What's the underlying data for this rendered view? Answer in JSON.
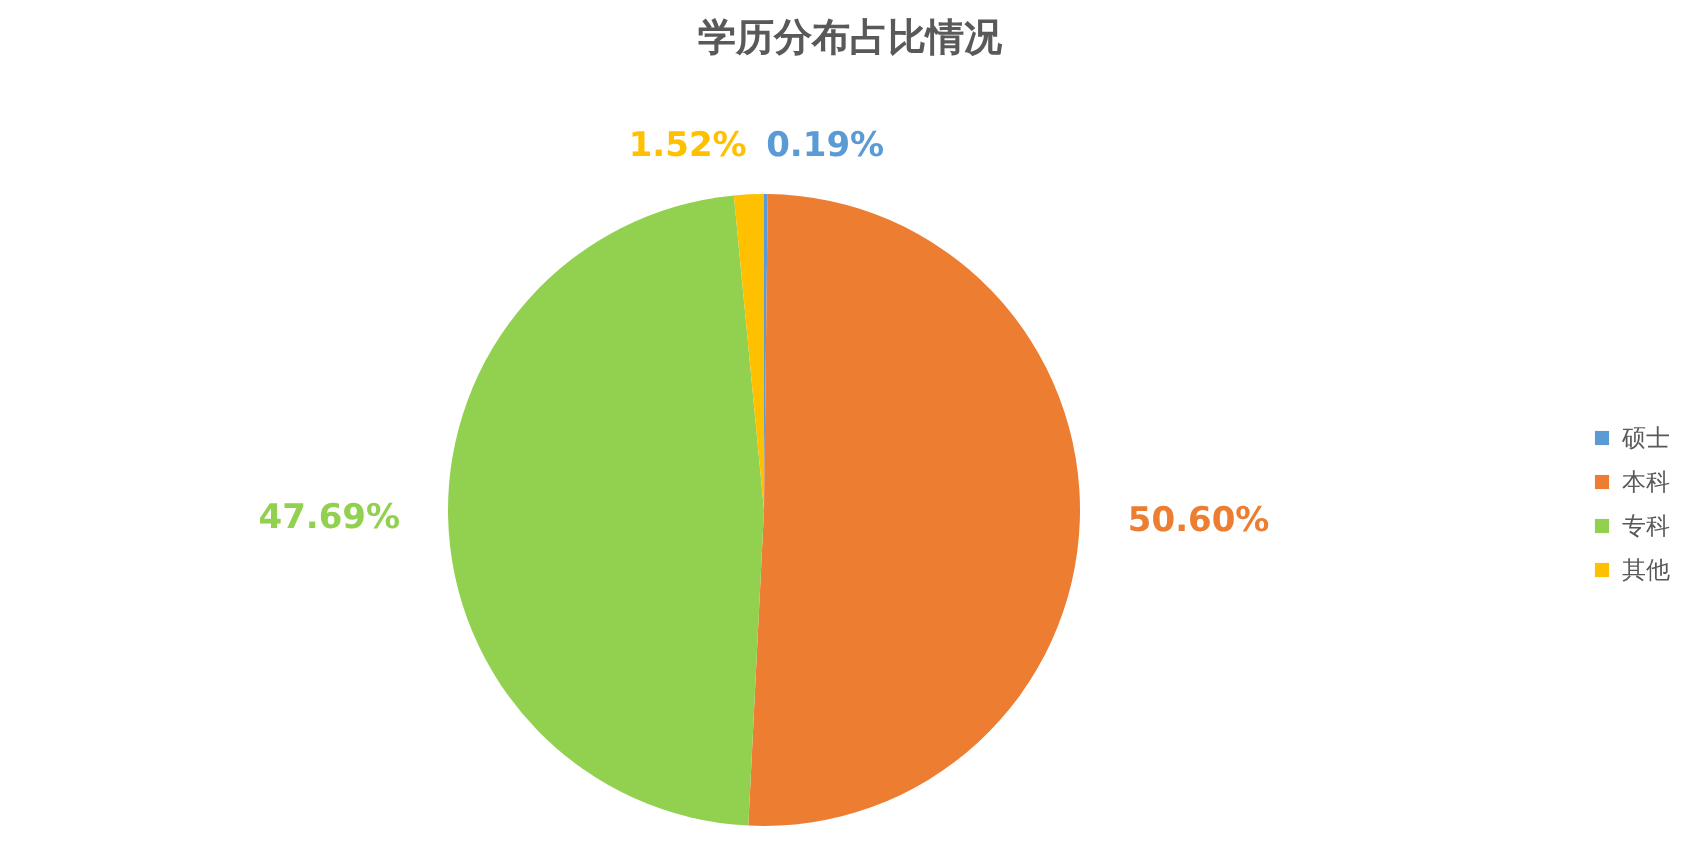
{
  "chart_data": {
    "type": "pie",
    "title": "学历分布占比情况",
    "categories": [
      "硕士",
      "本科",
      "专科",
      "其他"
    ],
    "values": [
      0.19,
      50.6,
      47.69,
      1.52
    ],
    "colors": [
      "#5b9bd5",
      "#ed7d31",
      "#92d050",
      "#ffc000"
    ],
    "value_labels": [
      "0.19%",
      "50.60%",
      "47.69%",
      "1.52%"
    ],
    "legend": "right"
  }
}
